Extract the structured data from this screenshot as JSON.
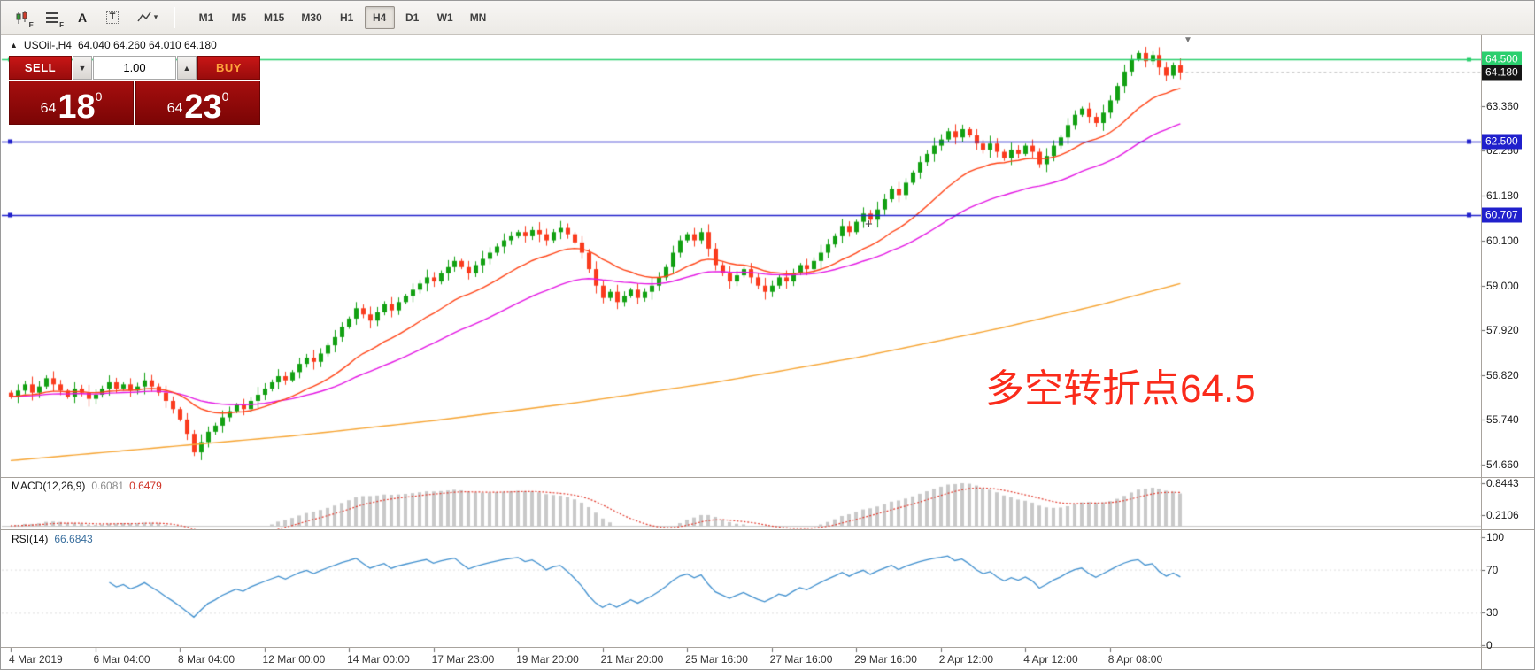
{
  "toolbar": {
    "chart_tool_sub": "E",
    "list_tool_sub": "F",
    "text_tool_label": "A",
    "label_tool_label": "T",
    "studies_caret": "▾",
    "timeframes": [
      {
        "label": "M1",
        "active": false
      },
      {
        "label": "M5",
        "active": false
      },
      {
        "label": "M15",
        "active": false
      },
      {
        "label": "M30",
        "active": false
      },
      {
        "label": "H1",
        "active": false
      },
      {
        "label": "H4",
        "active": true
      },
      {
        "label": "D1",
        "active": false
      },
      {
        "label": "W1",
        "active": false
      },
      {
        "label": "MN",
        "active": false
      }
    ]
  },
  "symbol_bar": {
    "toggle_icon": "▲",
    "symbol": "USOil-,H4",
    "ohlc": "64.040 64.260 64.010 64.180"
  },
  "trade_panel": {
    "sell_label": "SELL",
    "buy_label": "BUY",
    "volume": "1.00",
    "spinner_down": "▼",
    "spinner_up": "▲",
    "sell_price": {
      "prefix": "64",
      "big": "18",
      "sup": "0"
    },
    "buy_price": {
      "prefix": "64",
      "big": "23",
      "sup": "0"
    }
  },
  "annotation": {
    "text": "多空转折点64.5",
    "color": "#fa2b1b"
  },
  "markers": {
    "plus": "+",
    "shift": "▼"
  },
  "price_axis": {
    "ticks": [
      "63.360",
      "62.280",
      "61.180",
      "60.100",
      "59.000",
      "57.920",
      "56.820",
      "55.740",
      "54.660"
    ],
    "tags": [
      {
        "text": "64.500",
        "price": 64.5,
        "bg": "#2bcf6e"
      },
      {
        "text": "64.180",
        "price": 64.18,
        "bg": "#151515"
      },
      {
        "text": "62.500",
        "price": 62.5,
        "bg": "#2020cc"
      },
      {
        "text": "60.707",
        "price": 60.707,
        "bg": "#2020cc"
      }
    ]
  },
  "macd_panel": {
    "name": "MACD(12,26,9)",
    "value_main": "0.6081",
    "value_signal": "0.6479",
    "axis": [
      {
        "text": "0.8443",
        "value": 0.8443
      },
      {
        "text": "0.2106",
        "value": 0.2106
      }
    ],
    "histogram_color": "#c9c9c9",
    "signal_color": "#e23b2e"
  },
  "rsi_panel": {
    "name": "RSI(14)",
    "value": "66.6843",
    "axis": [
      {
        "text": "100",
        "value": 100
      },
      {
        "text": "70",
        "value": 70
      },
      {
        "text": "30",
        "value": 30
      },
      {
        "text": "0",
        "value": 0
      }
    ],
    "line_color": "#3f8fce",
    "levels": [
      70,
      30
    ]
  },
  "time_axis": {
    "labels": [
      {
        "text": "4 Mar 2019",
        "bar": 0
      },
      {
        "text": "6 Mar 04:00",
        "bar": 12
      },
      {
        "text": "8 Mar 04:00",
        "bar": 24
      },
      {
        "text": "12 Mar 00:00",
        "bar": 36
      },
      {
        "text": "14 Mar 00:00",
        "bar": 48
      },
      {
        "text": "17 Mar 23:00",
        "bar": 60
      },
      {
        "text": "19 Mar 20:00",
        "bar": 72
      },
      {
        "text": "21 Mar 20:00",
        "bar": 84
      },
      {
        "text": "25 Mar 16:00",
        "bar": 96
      },
      {
        "text": "27 Mar 16:00",
        "bar": 108
      },
      {
        "text": "29 Mar 16:00",
        "bar": 120
      },
      {
        "text": "2 Apr 12:00",
        "bar": 132
      },
      {
        "text": "4 Apr 12:00",
        "bar": 144
      },
      {
        "text": "8 Apr 08:00",
        "bar": 156
      }
    ]
  },
  "chart_data": {
    "type": "candlestick",
    "symbol": "USOil-",
    "period": "H4",
    "title": "USOil-,H4",
    "ohlc_current": {
      "open": 64.04,
      "high": 64.26,
      "low": 64.01,
      "close": 64.18
    },
    "price_range": [
      54.35,
      65.1
    ],
    "up_color": "#12a012",
    "down_color": "#fa3b1e",
    "ma_fast_color": "#ff4316",
    "ma_medium_color": "#e316e3",
    "ma_slow_color": "#f6a432",
    "hlines": [
      {
        "price": 64.5,
        "color": "#2bcf6e"
      },
      {
        "price": 62.5,
        "color": "#2020cc"
      },
      {
        "price": 60.707,
        "color": "#2020cc"
      }
    ],
    "closes": [
      56.3,
      56.45,
      56.6,
      56.4,
      56.55,
      56.75,
      56.6,
      56.45,
      56.3,
      56.5,
      56.4,
      56.25,
      56.35,
      56.5,
      56.65,
      56.5,
      56.6,
      56.45,
      56.55,
      56.7,
      56.55,
      56.4,
      56.2,
      56.0,
      55.75,
      55.4,
      54.95,
      55.2,
      55.45,
      55.6,
      55.8,
      55.95,
      56.1,
      56.0,
      56.2,
      56.35,
      56.5,
      56.65,
      56.8,
      56.7,
      56.9,
      57.1,
      57.25,
      57.15,
      57.35,
      57.55,
      57.75,
      58.0,
      58.2,
      58.45,
      58.3,
      58.15,
      58.35,
      58.55,
      58.4,
      58.6,
      58.75,
      58.9,
      59.05,
      59.2,
      59.1,
      59.3,
      59.45,
      59.6,
      59.45,
      59.3,
      59.5,
      59.65,
      59.8,
      59.95,
      60.1,
      60.2,
      60.3,
      60.2,
      60.35,
      60.25,
      60.1,
      60.3,
      60.4,
      60.25,
      60.05,
      59.8,
      59.4,
      59.0,
      58.7,
      58.85,
      58.6,
      58.75,
      58.9,
      58.7,
      58.85,
      59.0,
      59.2,
      59.45,
      59.8,
      60.1,
      60.25,
      60.1,
      60.3,
      59.9,
      59.5,
      59.3,
      59.1,
      59.25,
      59.4,
      59.2,
      59.0,
      58.85,
      59.0,
      59.2,
      59.1,
      59.3,
      59.5,
      59.4,
      59.6,
      59.8,
      60.0,
      60.2,
      60.45,
      60.3,
      60.55,
      60.75,
      60.6,
      60.85,
      61.1,
      61.35,
      61.2,
      61.5,
      61.75,
      62.0,
      62.2,
      62.4,
      62.55,
      62.75,
      62.6,
      62.8,
      62.65,
      62.45,
      62.3,
      62.45,
      62.25,
      62.1,
      62.3,
      62.2,
      62.4,
      62.25,
      61.95,
      62.15,
      62.4,
      62.6,
      62.9,
      63.15,
      63.3,
      63.1,
      62.95,
      63.2,
      63.5,
      63.85,
      64.2,
      64.5,
      64.65,
      64.45,
      64.6,
      64.3,
      64.1,
      64.35,
      64.18
    ],
    "slow_ma_anchors": [
      [
        0,
        54.75
      ],
      [
        20,
        55.05
      ],
      [
        40,
        55.35
      ],
      [
        60,
        55.72
      ],
      [
        80,
        56.15
      ],
      [
        100,
        56.65
      ],
      [
        120,
        57.25
      ],
      [
        140,
        57.95
      ],
      [
        155,
        58.55
      ],
      [
        166,
        59.05
      ]
    ]
  }
}
